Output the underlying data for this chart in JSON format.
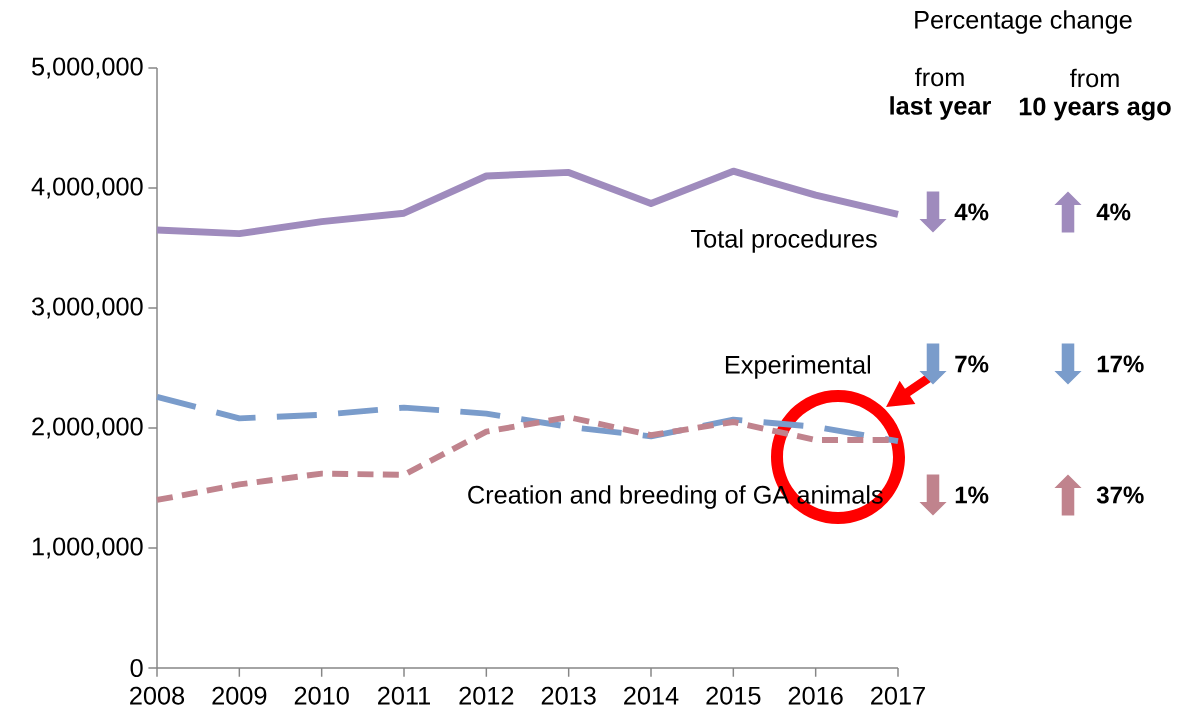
{
  "chart_data": {
    "type": "line",
    "x": [
      2008,
      2009,
      2010,
      2011,
      2012,
      2013,
      2014,
      2015,
      2016,
      2017
    ],
    "xlim": [
      2008,
      2017
    ],
    "xticks": [
      2008,
      2009,
      2010,
      2011,
      2012,
      2013,
      2014,
      2015,
      2016,
      2017
    ],
    "ylim": [
      0,
      5000000
    ],
    "yticks": [
      0,
      {
        "value": 1000000,
        "label": "1,000,000"
      },
      {
        "value": 2000000,
        "label": "2,000,000"
      },
      {
        "value": 3000000,
        "label": "3,000,000"
      },
      {
        "value": 4000000,
        "label": "4,000,000"
      },
      {
        "value": 5000000,
        "label": "5,000,000"
      }
    ],
    "series": [
      {
        "name": "Total procedures",
        "color": "#9f8bbd",
        "line_style": "solid",
        "values": [
          3650000,
          3620000,
          3720000,
          3790000,
          4100000,
          4130000,
          3870000,
          4140000,
          3940000,
          3780000
        ]
      },
      {
        "name": "Experimental",
        "color": "#7a9ccb",
        "line_style": "dashed",
        "values": [
          2260000,
          2080000,
          2110000,
          2170000,
          2120000,
          2010000,
          1930000,
          2070000,
          2010000,
          1890000
        ]
      },
      {
        "name": "Creation and breeding of GA animals",
        "color": "#c0838d",
        "line_style": "dashed",
        "values": [
          1400000,
          1530000,
          1620000,
          1610000,
          1970000,
          2090000,
          1940000,
          2050000,
          1900000,
          1900000
        ]
      }
    ],
    "annotations": [
      "Percentage change",
      "from",
      "last year",
      "from",
      "10 years ago",
      "⬇",
      "4%",
      "⬆",
      "4%",
      "⬇",
      "7%",
      "⬇",
      "17%",
      "⬇",
      "1%",
      "⬆",
      "37%"
    ]
  }
}
